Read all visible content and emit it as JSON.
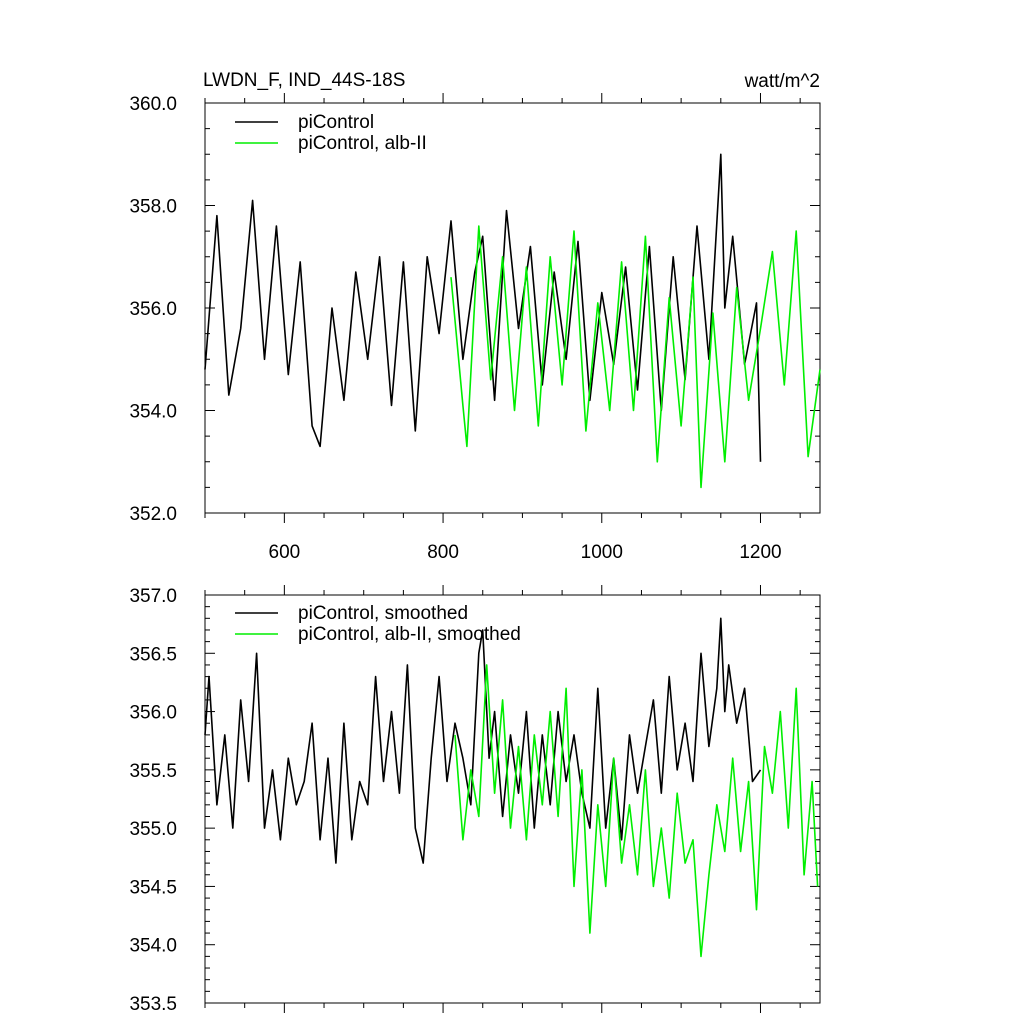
{
  "header": {
    "title": "LWDN_F, IND_44S-18S",
    "units": "watt/m^2"
  },
  "colors": {
    "control": "#000000",
    "experiment": "#00ee00"
  },
  "chart_data": [
    {
      "type": "line",
      "xlim": [
        500,
        1275
      ],
      "ylim": [
        352.0,
        360.0
      ],
      "x_ticks": [
        600,
        800,
        1000,
        1200
      ],
      "x_tick_labels": [
        "600",
        "800",
        "1000",
        "1200"
      ],
      "y_ticks": [
        352.0,
        354.0,
        356.0,
        358.0,
        360.0
      ],
      "y_tick_labels": [
        "352.0",
        "354.0",
        "356.0",
        "358.0",
        "360.0"
      ],
      "legend_position": "top-left",
      "series": [
        {
          "name": "piControl",
          "color": "#000000",
          "x": [
            500,
            515,
            530,
            545,
            560,
            575,
            590,
            605,
            620,
            635,
            645,
            660,
            675,
            690,
            705,
            720,
            735,
            750,
            765,
            780,
            795,
            810,
            825,
            840,
            850,
            865,
            880,
            895,
            910,
            925,
            940,
            955,
            970,
            985,
            1000,
            1015,
            1030,
            1045,
            1060,
            1075,
            1090,
            1105,
            1120,
            1135,
            1150,
            1155,
            1165,
            1180,
            1195,
            1200
          ],
          "y": [
            354.8,
            357.8,
            354.3,
            355.6,
            358.1,
            355.0,
            357.6,
            354.7,
            356.9,
            353.7,
            353.3,
            356.0,
            354.2,
            356.7,
            355.0,
            357.0,
            354.1,
            356.9,
            353.6,
            357.0,
            355.5,
            357.7,
            355.0,
            356.7,
            357.4,
            354.2,
            357.9,
            355.6,
            357.2,
            354.5,
            356.7,
            355.0,
            357.3,
            354.2,
            356.3,
            354.9,
            356.8,
            354.4,
            357.2,
            354.0,
            357.0,
            354.6,
            357.6,
            355.0,
            359.0,
            356.0,
            357.4,
            354.9,
            356.1,
            353.0
          ]
        },
        {
          "name": "piControl, alb-II",
          "color": "#00ee00",
          "x": [
            810,
            825,
            830,
            845,
            860,
            875,
            890,
            905,
            920,
            935,
            950,
            965,
            980,
            995,
            1010,
            1025,
            1040,
            1055,
            1070,
            1085,
            1100,
            1115,
            1125,
            1140,
            1155,
            1170,
            1185,
            1200,
            1215,
            1230,
            1245,
            1260,
            1275
          ],
          "y": [
            356.6,
            354.1,
            353.3,
            357.6,
            354.6,
            357.0,
            354.0,
            356.8,
            353.7,
            357.0,
            354.5,
            357.5,
            353.6,
            356.1,
            354.0,
            356.9,
            354.0,
            357.4,
            353.0,
            356.2,
            353.7,
            356.6,
            352.5,
            355.9,
            353.0,
            356.4,
            354.2,
            355.6,
            357.1,
            354.5,
            357.5,
            353.1,
            354.8
          ]
        }
      ]
    },
    {
      "type": "line",
      "xlim": [
        500,
        1275
      ],
      "ylim": [
        353.5,
        357.0
      ],
      "x_ticks": [
        600,
        800,
        1000,
        1200
      ],
      "y_ticks": [
        353.5,
        354.0,
        354.5,
        355.0,
        355.5,
        356.0,
        356.5,
        357.0
      ],
      "y_tick_labels": [
        "353.5",
        "354.0",
        "354.5",
        "355.0",
        "355.5",
        "356.0",
        "356.5",
        "357.0"
      ],
      "legend_position": "top-left",
      "series": [
        {
          "name": "piControl, smoothed",
          "color": "#000000",
          "x": [
            500,
            505,
            515,
            525,
            535,
            545,
            555,
            565,
            575,
            585,
            595,
            605,
            615,
            625,
            635,
            645,
            655,
            665,
            675,
            685,
            695,
            705,
            715,
            725,
            735,
            745,
            755,
            765,
            775,
            785,
            795,
            805,
            815,
            825,
            835,
            845,
            850,
            858,
            865,
            875,
            885,
            895,
            905,
            915,
            925,
            935,
            945,
            955,
            965,
            975,
            985,
            995,
            1005,
            1015,
            1025,
            1035,
            1045,
            1055,
            1065,
            1075,
            1085,
            1095,
            1105,
            1115,
            1125,
            1135,
            1145,
            1150,
            1155,
            1160,
            1170,
            1180,
            1190,
            1200
          ],
          "y": [
            355.8,
            356.3,
            355.2,
            355.8,
            355.0,
            356.1,
            355.4,
            356.5,
            355.0,
            355.5,
            354.9,
            355.6,
            355.2,
            355.4,
            355.9,
            354.9,
            355.6,
            354.7,
            355.9,
            354.9,
            355.4,
            355.2,
            356.3,
            355.4,
            356.0,
            355.3,
            356.4,
            355.0,
            354.7,
            355.6,
            356.3,
            355.4,
            355.9,
            355.6,
            355.2,
            356.5,
            356.7,
            355.6,
            356.0,
            355.1,
            355.8,
            355.3,
            356.0,
            355.0,
            355.8,
            355.2,
            356.0,
            355.4,
            355.8,
            355.3,
            355.0,
            356.2,
            355.0,
            355.6,
            354.9,
            355.8,
            355.3,
            355.7,
            356.1,
            355.3,
            356.3,
            355.5,
            355.9,
            355.4,
            356.5,
            355.7,
            356.2,
            356.8,
            356.0,
            356.4,
            355.9,
            356.2,
            355.4,
            355.5
          ]
        },
        {
          "name": "piControl, alb-II, smoothed",
          "color": "#00ee00",
          "x": [
            815,
            825,
            835,
            845,
            855,
            865,
            875,
            885,
            895,
            905,
            915,
            925,
            935,
            945,
            955,
            965,
            975,
            985,
            995,
            1005,
            1015,
            1025,
            1035,
            1045,
            1055,
            1065,
            1075,
            1085,
            1095,
            1105,
            1115,
            1125,
            1135,
            1145,
            1155,
            1165,
            1175,
            1185,
            1195,
            1205,
            1215,
            1225,
            1235,
            1245,
            1255,
            1265,
            1272
          ],
          "y": [
            355.8,
            354.9,
            355.5,
            355.1,
            356.4,
            355.3,
            356.1,
            355.0,
            355.7,
            354.9,
            355.8,
            355.2,
            356.0,
            355.1,
            356.2,
            354.5,
            355.5,
            354.1,
            355.2,
            354.5,
            355.6,
            354.7,
            355.2,
            354.6,
            355.5,
            354.5,
            355.0,
            354.4,
            355.3,
            354.7,
            354.9,
            353.9,
            354.6,
            355.2,
            354.8,
            355.6,
            354.8,
            355.4,
            354.3,
            355.7,
            355.3,
            356.0,
            355.0,
            356.2,
            354.6,
            355.4,
            354.5
          ]
        }
      ]
    }
  ]
}
